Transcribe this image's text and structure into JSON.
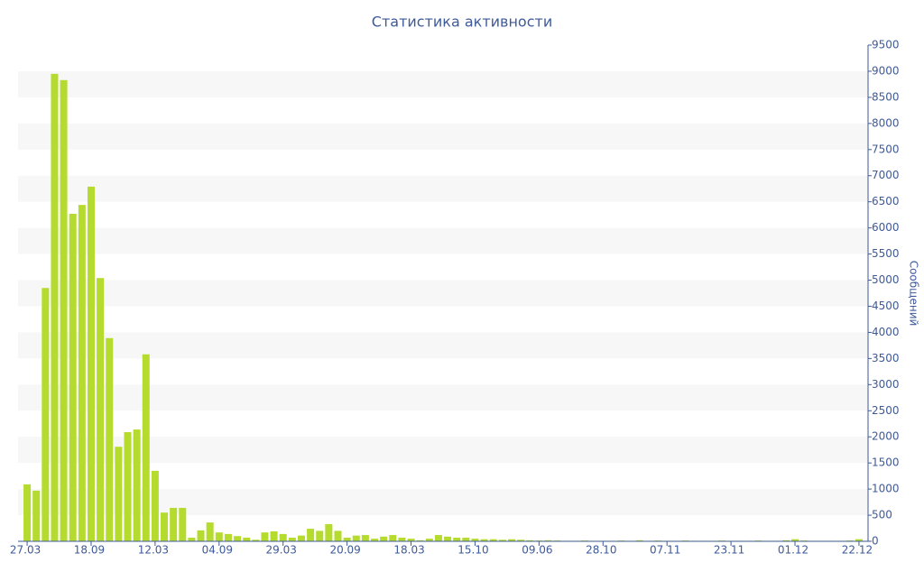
{
  "chart_data": {
    "type": "bar",
    "title": "Статистика активности",
    "y_label": "Сообщений",
    "categories": [
      "27.03",
      null,
      null,
      null,
      null,
      null,
      null,
      "18.09",
      null,
      null,
      null,
      null,
      null,
      null,
      "12.03",
      null,
      null,
      null,
      null,
      null,
      null,
      "04.09",
      null,
      null,
      null,
      null,
      null,
      null,
      "29.03",
      null,
      null,
      null,
      null,
      null,
      null,
      "20.09",
      null,
      null,
      null,
      null,
      null,
      null,
      "18.03",
      null,
      null,
      null,
      null,
      null,
      null,
      "15.10",
      null,
      null,
      null,
      null,
      null,
      null,
      "09.06",
      null,
      null,
      null,
      null,
      null,
      null,
      "28.10",
      null,
      null,
      null,
      null,
      null,
      null,
      "07.11",
      null,
      null,
      null,
      null,
      null,
      null,
      "23.11",
      null,
      null,
      null,
      null,
      null,
      null,
      "01.12",
      null,
      null,
      null,
      null,
      null,
      null,
      "22.12"
    ],
    "values": [
      1090,
      970,
      4850,
      8950,
      8830,
      6270,
      6440,
      6790,
      5040,
      3890,
      1810,
      2090,
      2140,
      3580,
      1350,
      550,
      640,
      640,
      70,
      210,
      360,
      170,
      140,
      100,
      70,
      30,
      170,
      190,
      140,
      70,
      110,
      240,
      200,
      330,
      200,
      70,
      110,
      120,
      50,
      90,
      120,
      70,
      50,
      20,
      50,
      120,
      90,
      70,
      70,
      50,
      40,
      40,
      30,
      40,
      30,
      20,
      15,
      20,
      15,
      10,
      10,
      15,
      10,
      10,
      10,
      15,
      10,
      20,
      10,
      15,
      10,
      10,
      15,
      10,
      10,
      10,
      15,
      10,
      10,
      10,
      15,
      10,
      10,
      20,
      40,
      15,
      10,
      10,
      10,
      10,
      15,
      40
    ],
    "color": "#b5db2e",
    "ylim": [
      0,
      9500
    ],
    "yticks": [
      0,
      500,
      1000,
      1500,
      2000,
      2500,
      3000,
      3500,
      4000,
      4500,
      5000,
      5500,
      6000,
      6500,
      7000,
      7500,
      8000,
      8500,
      9000,
      9500
    ],
    "bands": true
  }
}
